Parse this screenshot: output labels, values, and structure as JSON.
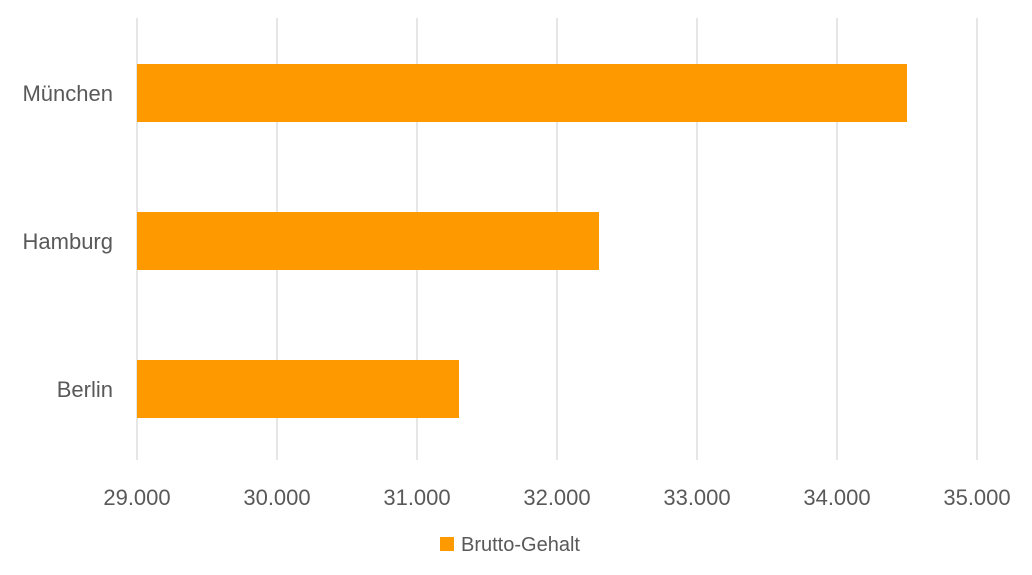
{
  "chart_data": {
    "type": "bar",
    "orientation": "horizontal",
    "categories": [
      "München",
      "Hamburg",
      "Berlin"
    ],
    "series": [
      {
        "name": "Brutto-Gehalt",
        "values": [
          34500,
          32300,
          31300
        ],
        "color": "#FF9900"
      }
    ],
    "xlim": [
      29000,
      35000
    ],
    "x_ticks": [
      29000,
      30000,
      31000,
      32000,
      33000,
      34000,
      35000
    ],
    "x_tick_labels": [
      "29.000",
      "30.000",
      "31.000",
      "32.000",
      "33.000",
      "34.000",
      "35.000"
    ],
    "title": "",
    "xlabel": "",
    "ylabel": "",
    "grid": "vertical",
    "legend": "bottom",
    "gridline_color": "#D9D9D9",
    "text_color": "#595959"
  }
}
